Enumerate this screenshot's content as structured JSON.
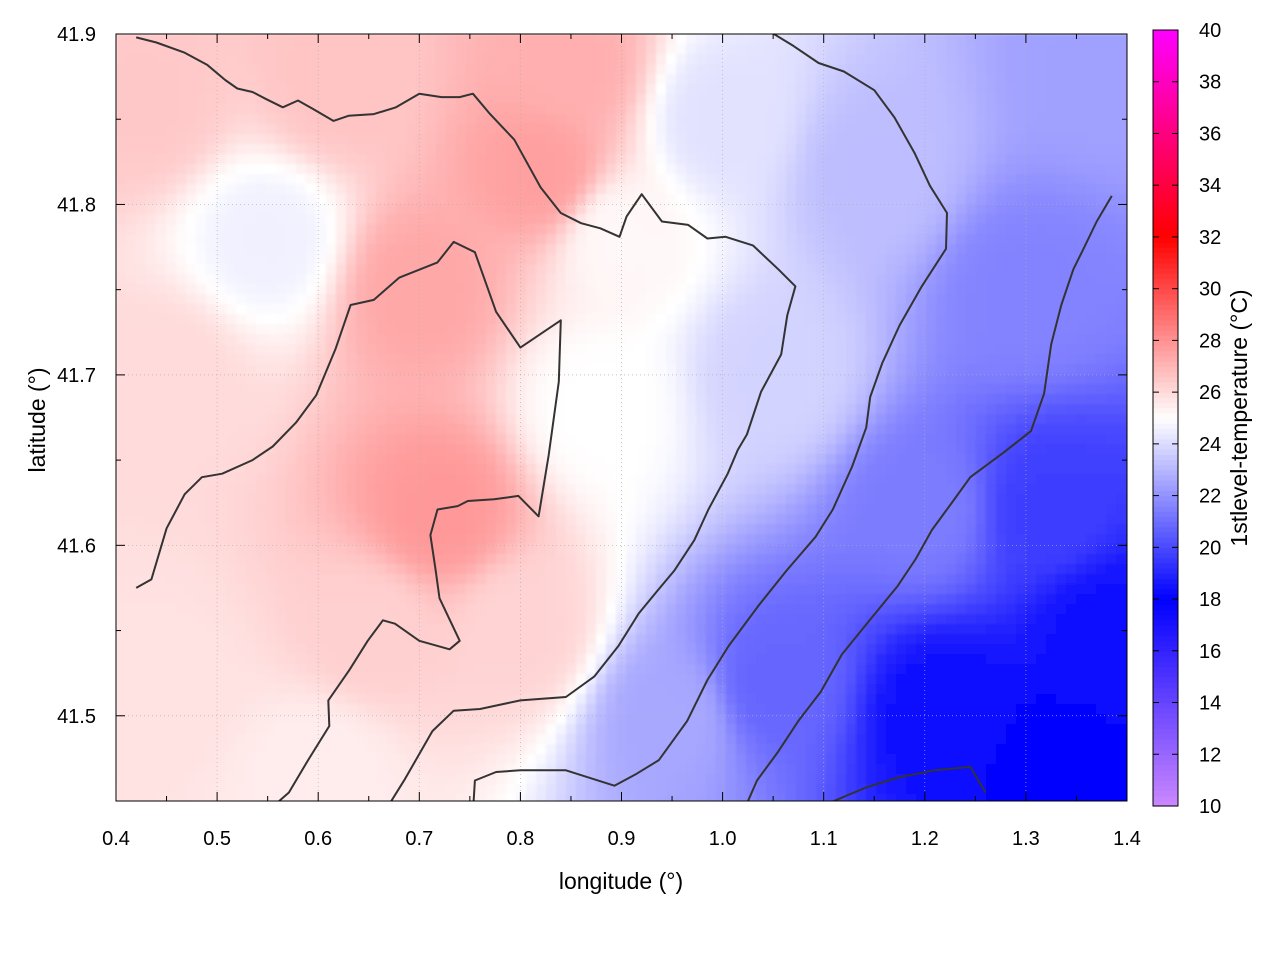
{
  "chart_data": {
    "type": "heatmap",
    "xlabel": "longitude (°)",
    "ylabel": "latitude (°)",
    "colorbar_label": "1stlevel-temperature (°C)",
    "xlim": [
      0.4,
      1.4
    ],
    "ylim": [
      41.45,
      41.9
    ],
    "x_ticks": [
      0.4,
      0.5,
      0.6,
      0.7,
      0.8,
      0.9,
      1.0,
      1.1,
      1.2,
      1.3,
      1.4
    ],
    "x_tick_labels": [
      "0.4",
      "0.5",
      "0.6",
      "0.7",
      "0.8",
      "0.9",
      "1.0",
      "1.1",
      "1.2",
      "1.3",
      "1.4"
    ],
    "y_ticks": [
      41.5,
      41.6,
      41.7,
      41.8,
      41.9
    ],
    "y_tick_labels": [
      "41.5",
      "41.6",
      "41.7",
      "41.8",
      "41.9"
    ],
    "colorbar_range": [
      10,
      40
    ],
    "colorbar_ticks": [
      10,
      12,
      14,
      16,
      18,
      20,
      22,
      24,
      26,
      28,
      30,
      32,
      34,
      36,
      38,
      40
    ],
    "colorbar_tick_labels": [
      "10",
      "12",
      "14",
      "16",
      "18",
      "20",
      "22",
      "24",
      "26",
      "28",
      "30",
      "32",
      "34",
      "36",
      "38",
      "40"
    ],
    "colorbar_stops": [
      {
        "value": 10,
        "color": "#cc88ff"
      },
      {
        "value": 18,
        "color": "#0000ff"
      },
      {
        "value": 25,
        "color": "#ffffff"
      },
      {
        "value": 32,
        "color": "#ff0000"
      },
      {
        "value": 40,
        "color": "#ff00ff"
      }
    ],
    "grid": true,
    "contour_color": "#333333",
    "field_anchors": [
      {
        "x": 0.43,
        "y": 41.86,
        "value": 26.5
      },
      {
        "x": 0.45,
        "y": 41.7,
        "value": 26.0
      },
      {
        "x": 0.45,
        "y": 41.52,
        "value": 25.8
      },
      {
        "x": 0.55,
        "y": 41.78,
        "value": 24.6
      },
      {
        "x": 0.62,
        "y": 41.87,
        "value": 26.6
      },
      {
        "x": 0.7,
        "y": 41.75,
        "value": 27.4
      },
      {
        "x": 0.72,
        "y": 41.62,
        "value": 27.8
      },
      {
        "x": 0.65,
        "y": 41.55,
        "value": 26.3
      },
      {
        "x": 0.82,
        "y": 41.82,
        "value": 27.6
      },
      {
        "x": 0.85,
        "y": 41.88,
        "value": 27.2
      },
      {
        "x": 0.8,
        "y": 41.55,
        "value": 26.2
      },
      {
        "x": 0.6,
        "y": 41.47,
        "value": 25.5
      },
      {
        "x": 0.88,
        "y": 41.68,
        "value": 25.0
      },
      {
        "x": 0.9,
        "y": 41.78,
        "value": 25.2
      },
      {
        "x": 0.95,
        "y": 41.5,
        "value": 22.6
      },
      {
        "x": 1.0,
        "y": 41.85,
        "value": 24.2
      },
      {
        "x": 1.05,
        "y": 41.7,
        "value": 23.8
      },
      {
        "x": 1.05,
        "y": 41.52,
        "value": 20.8
      },
      {
        "x": 1.15,
        "y": 41.82,
        "value": 23.2
      },
      {
        "x": 1.2,
        "y": 41.62,
        "value": 21.4
      },
      {
        "x": 1.22,
        "y": 41.5,
        "value": 18.3
      },
      {
        "x": 1.3,
        "y": 41.75,
        "value": 21.6
      },
      {
        "x": 1.32,
        "y": 41.62,
        "value": 19.7
      },
      {
        "x": 1.33,
        "y": 41.47,
        "value": 18.0
      },
      {
        "x": 1.38,
        "y": 41.88,
        "value": 22.4
      },
      {
        "x": 1.38,
        "y": 41.55,
        "value": 18.4
      }
    ],
    "contours": [
      [
        [
          0.42,
          41.575
        ],
        [
          0.435,
          41.58
        ],
        [
          0.45,
          41.61
        ],
        [
          0.468,
          41.63
        ],
        [
          0.485,
          41.64
        ],
        [
          0.505,
          41.642
        ],
        [
          0.535,
          41.65
        ],
        [
          0.555,
          41.658
        ],
        [
          0.578,
          41.672
        ],
        [
          0.598,
          41.688
        ],
        [
          0.617,
          41.715
        ],
        [
          0.632,
          41.741
        ],
        [
          0.655,
          41.744
        ],
        [
          0.68,
          41.757
        ],
        [
          0.718,
          41.766
        ],
        [
          0.734,
          41.778
        ],
        [
          0.755,
          41.772
        ],
        [
          0.776,
          41.737
        ],
        [
          0.8,
          41.716
        ],
        [
          0.84,
          41.732
        ],
        [
          0.838,
          41.696
        ],
        [
          0.828,
          41.653
        ],
        [
          0.818,
          41.617
        ],
        [
          0.798,
          41.629
        ],
        [
          0.774,
          41.627
        ],
        [
          0.748,
          41.626
        ],
        [
          0.738,
          41.623
        ],
        [
          0.718,
          41.621
        ],
        [
          0.711,
          41.606
        ],
        [
          0.716,
          41.586
        ],
        [
          0.72,
          41.569
        ],
        [
          0.74,
          41.544
        ],
        [
          0.73,
          41.539
        ],
        [
          0.7,
          41.544
        ],
        [
          0.676,
          41.554
        ],
        [
          0.664,
          41.556
        ],
        [
          0.649,
          41.544
        ],
        [
          0.631,
          41.527
        ],
        [
          0.61,
          41.509
        ],
        [
          0.611,
          41.494
        ],
        [
          0.59,
          41.474
        ],
        [
          0.571,
          41.455
        ],
        [
          0.548,
          41.443
        ]
      ],
      [
        [
          0.665,
          41.443
        ],
        [
          0.686,
          41.463
        ],
        [
          0.713,
          41.491
        ],
        [
          0.734,
          41.503
        ],
        [
          0.76,
          41.504
        ],
        [
          0.8,
          41.509
        ],
        [
          0.845,
          41.511
        ],
        [
          0.873,
          41.523
        ],
        [
          0.897,
          41.541
        ],
        [
          0.917,
          41.56
        ],
        [
          0.935,
          41.573
        ],
        [
          0.952,
          41.585
        ],
        [
          0.972,
          41.603
        ],
        [
          0.986,
          41.621
        ],
        [
          1.005,
          41.642
        ],
        [
          1.015,
          41.656
        ],
        [
          1.024,
          41.665
        ],
        [
          1.038,
          41.69
        ],
        [
          1.058,
          41.712
        ],
        [
          1.064,
          41.735
        ],
        [
          1.072,
          41.752
        ],
        [
          1.055,
          41.762
        ],
        [
          1.03,
          41.776
        ],
        [
          1.003,
          41.781
        ],
        [
          0.985,
          41.78
        ],
        [
          0.966,
          41.788
        ],
        [
          0.94,
          41.79
        ],
        [
          0.92,
          41.806
        ],
        [
          0.905,
          41.793
        ],
        [
          0.898,
          41.781
        ],
        [
          0.879,
          41.786
        ],
        [
          0.86,
          41.789
        ],
        [
          0.84,
          41.795
        ],
        [
          0.82,
          41.81
        ],
        [
          0.794,
          41.838
        ],
        [
          0.77,
          41.853
        ],
        [
          0.753,
          41.865
        ],
        [
          0.74,
          41.863
        ],
        [
          0.722,
          41.863
        ],
        [
          0.7,
          41.865
        ],
        [
          0.677,
          41.857
        ],
        [
          0.655,
          41.853
        ],
        [
          0.63,
          41.852
        ],
        [
          0.615,
          41.849
        ],
        [
          0.595,
          41.856
        ],
        [
          0.58,
          41.861
        ],
        [
          0.565,
          41.857
        ],
        [
          0.548,
          41.862
        ],
        [
          0.535,
          41.866
        ],
        [
          0.52,
          41.868
        ],
        [
          0.508,
          41.873
        ],
        [
          0.49,
          41.882
        ],
        [
          0.468,
          41.889
        ],
        [
          0.44,
          41.895
        ],
        [
          0.42,
          41.898
        ]
      ],
      [
        [
          0.753,
          41.443
        ],
        [
          0.755,
          41.462
        ],
        [
          0.776,
          41.467
        ],
        [
          0.8,
          41.468
        ],
        [
          0.845,
          41.468
        ],
        [
          0.893,
          41.459
        ],
        [
          0.915,
          41.466
        ],
        [
          0.937,
          41.474
        ],
        [
          0.965,
          41.497
        ],
        [
          0.985,
          41.521
        ],
        [
          1.006,
          41.541
        ],
        [
          1.036,
          41.565
        ],
        [
          1.063,
          41.585
        ],
        [
          1.092,
          41.605
        ],
        [
          1.109,
          41.621
        ],
        [
          1.128,
          41.646
        ],
        [
          1.142,
          41.669
        ],
        [
          1.146,
          41.687
        ],
        [
          1.158,
          41.707
        ],
        [
          1.175,
          41.729
        ],
        [
          1.197,
          41.752
        ],
        [
          1.221,
          41.774
        ],
        [
          1.222,
          41.795
        ],
        [
          1.205,
          41.811
        ],
        [
          1.19,
          41.83
        ],
        [
          1.17,
          41.851
        ],
        [
          1.15,
          41.867
        ],
        [
          1.12,
          41.878
        ],
        [
          1.095,
          41.883
        ],
        [
          1.07,
          41.893
        ],
        [
          1.048,
          41.901
        ],
        [
          1.01,
          41.905
        ],
        [
          0.96,
          41.908
        ]
      ],
      [
        [
          1.02,
          41.443
        ],
        [
          1.034,
          41.462
        ],
        [
          1.055,
          41.479
        ],
        [
          1.075,
          41.497
        ],
        [
          1.097,
          41.514
        ],
        [
          1.118,
          41.536
        ],
        [
          1.144,
          41.555
        ],
        [
          1.173,
          41.576
        ],
        [
          1.191,
          41.592
        ],
        [
          1.207,
          41.609
        ],
        [
          1.228,
          41.626
        ],
        [
          1.245,
          41.64
        ],
        [
          1.277,
          41.654
        ],
        [
          1.305,
          41.667
        ],
        [
          1.318,
          41.689
        ],
        [
          1.325,
          41.718
        ],
        [
          1.335,
          41.741
        ],
        [
          1.347,
          41.762
        ],
        [
          1.357,
          41.774
        ],
        [
          1.37,
          41.79
        ],
        [
          1.385,
          41.805
        ]
      ],
      [
        [
          1.11,
          41.45
        ],
        [
          1.142,
          41.458
        ],
        [
          1.175,
          41.464
        ],
        [
          1.21,
          41.468
        ],
        [
          1.245,
          41.47
        ],
        [
          1.26,
          41.455
        ]
      ]
    ]
  }
}
